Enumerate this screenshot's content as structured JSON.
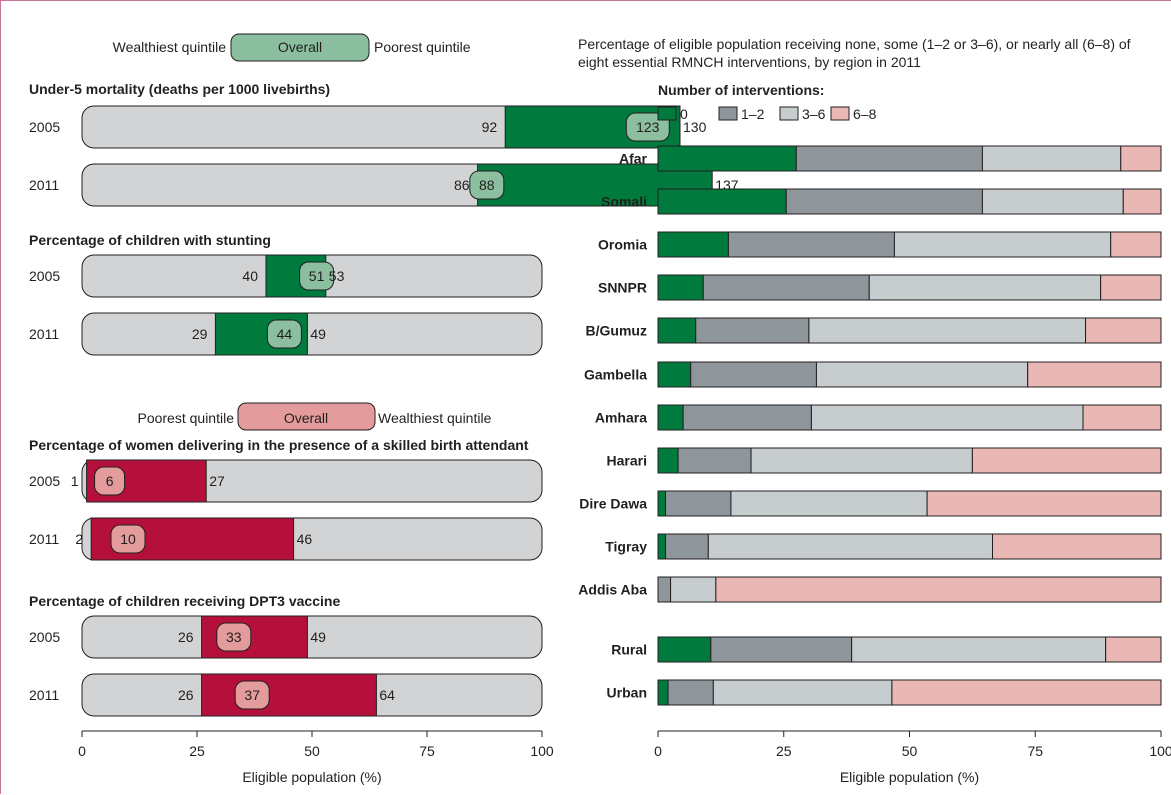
{
  "colors": {
    "track": "#d1d3d4",
    "green_dark": "#007a3d",
    "green_light": "#8bbf9f",
    "red_dark": "#b5103b",
    "red_light": "#e39b9b",
    "grey_dark": "#8e969b",
    "grey_light": "#c7ccce",
    "pink": "#e9b8b5",
    "text": "#231f20"
  },
  "legends": {
    "top": {
      "left": "Wealthiest quintile",
      "middle": "Overall",
      "right": "Poorest quintile"
    },
    "bottom": {
      "left": "Poorest quintile",
      "middle": "Overall",
      "right": "Wealthiest quintile"
    }
  },
  "chart_data": [
    {
      "type": "bar",
      "subtype": "range",
      "panels": [
        {
          "title": "Under-5 mortality (deaths per 1000 livebirths)",
          "color": "green",
          "rows": [
            {
              "year": "2005",
              "low": 92,
              "overall": 123,
              "high": 130
            },
            {
              "year": "2011",
              "low": 86,
              "overall": 88,
              "high": 137
            }
          ]
        },
        {
          "title": "Percentage  of children with stunting",
          "color": "green",
          "rows": [
            {
              "year": "2005",
              "low": 40,
              "overall": 51,
              "high": 53
            },
            {
              "year": "2011",
              "low": 29,
              "overall": 44,
              "high": 49
            }
          ]
        },
        {
          "title": "Percentage of women delivering in the presence of a skilled birth attendant",
          "color": "red",
          "rows": [
            {
              "year": "2005",
              "low": 1,
              "overall": 6,
              "high": 27
            },
            {
              "year": "2011",
              "low": 2,
              "overall": 10,
              "high": 46
            }
          ]
        },
        {
          "title": "Percentage  of children receiving DPT3 vaccine",
          "color": "red",
          "rows": [
            {
              "year": "2005",
              "low": 26,
              "overall": 33,
              "high": 49
            },
            {
              "year": "2011",
              "low": 26,
              "overall": 37,
              "high": 64
            }
          ]
        }
      ],
      "xlabel": "Eligible population (%)",
      "xlim": [
        0,
        100
      ],
      "xticks": [
        "0",
        "25",
        "50",
        "75",
        "100"
      ]
    },
    {
      "type": "bar",
      "subtype": "stacked-horizontal",
      "title": "Percentage of eligible population receiving none, some (1–2 or 3–6), or nearly all (6–8) of eight essential RMNCH interventions, by region in 2011",
      "legend_title": "Number of interventions:",
      "legend_position": "top-left",
      "series": [
        {
          "name": "0",
          "color": "#007a3d"
        },
        {
          "name": "1–2",
          "color": "#8e969b"
        },
        {
          "name": "3–6",
          "color": "#c7ccce"
        },
        {
          "name": "6–8",
          "color": "#e9b8b5"
        }
      ],
      "categories": [
        "Afar",
        "Somali",
        "Oromia",
        "SNNPR",
        "B/Gumuz",
        "Gambella",
        "Amhara",
        "Harari",
        "Dire Dawa",
        "Tigray",
        "Addis Aba",
        "Rural",
        "Urban"
      ],
      "values": [
        [
          27.5,
          37,
          27.5,
          8
        ],
        [
          25.5,
          39,
          28,
          7.5
        ],
        [
          14,
          33,
          43,
          10
        ],
        [
          9,
          33,
          46,
          12
        ],
        [
          7.5,
          22.5,
          55,
          15
        ],
        [
          6.5,
          25,
          42,
          26.5
        ],
        [
          5,
          25.5,
          54,
          15.5
        ],
        [
          4,
          14.5,
          44,
          37.5
        ],
        [
          1.5,
          13,
          39,
          46.5
        ],
        [
          1.5,
          8.5,
          56.5,
          33.5
        ],
        [
          0,
          2.5,
          9,
          88.5
        ],
        [
          10.5,
          28,
          50.5,
          11
        ],
        [
          2,
          9,
          35.5,
          53.5
        ]
      ],
      "xlabel": "Eligible population (%)",
      "xlim": [
        0,
        100
      ],
      "xticks": [
        "0",
        "25",
        "50",
        "75",
        "100"
      ]
    }
  ]
}
